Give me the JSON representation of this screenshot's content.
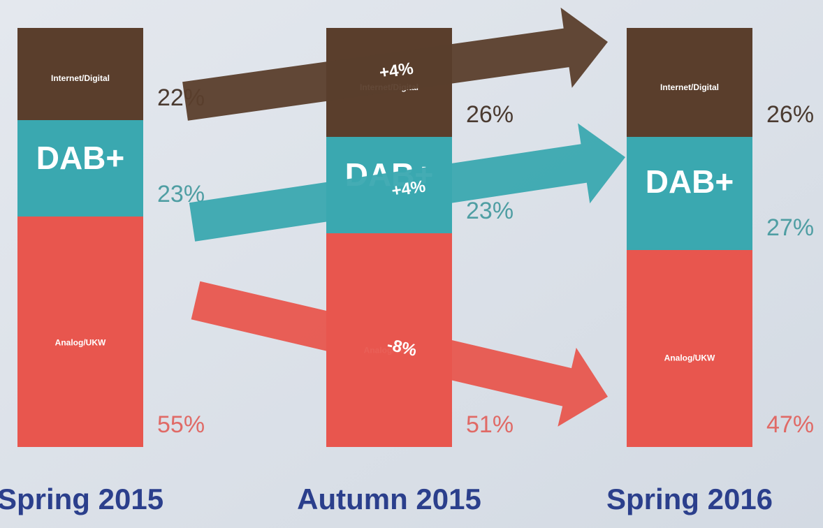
{
  "chart_data": {
    "type": "stacked-bar",
    "categories": [
      "Spring 2015",
      "Autumn 2015",
      "Spring 2016"
    ],
    "series": [
      {
        "name": "Internet/Digital",
        "color": "#5a3e2c",
        "label_color": "#4a3a30",
        "values": [
          22,
          26,
          26
        ],
        "value_labels": [
          "22%",
          "26%",
          "26%"
        ]
      },
      {
        "name": "DAB+",
        "color": "#3aa8b0",
        "label_color": "#4f9ea3",
        "values": [
          23,
          23,
          27
        ],
        "value_labels": [
          "23%",
          "23%",
          "27%"
        ]
      },
      {
        "name": "Analog/UKW",
        "color": "#e8564e",
        "label_color": "#e06a66",
        "values": [
          55,
          51,
          47
        ],
        "value_labels": [
          "55%",
          "51%",
          "47%"
        ]
      }
    ],
    "annotations": [
      "+4%",
      "+4%",
      "-8%"
    ]
  }
}
